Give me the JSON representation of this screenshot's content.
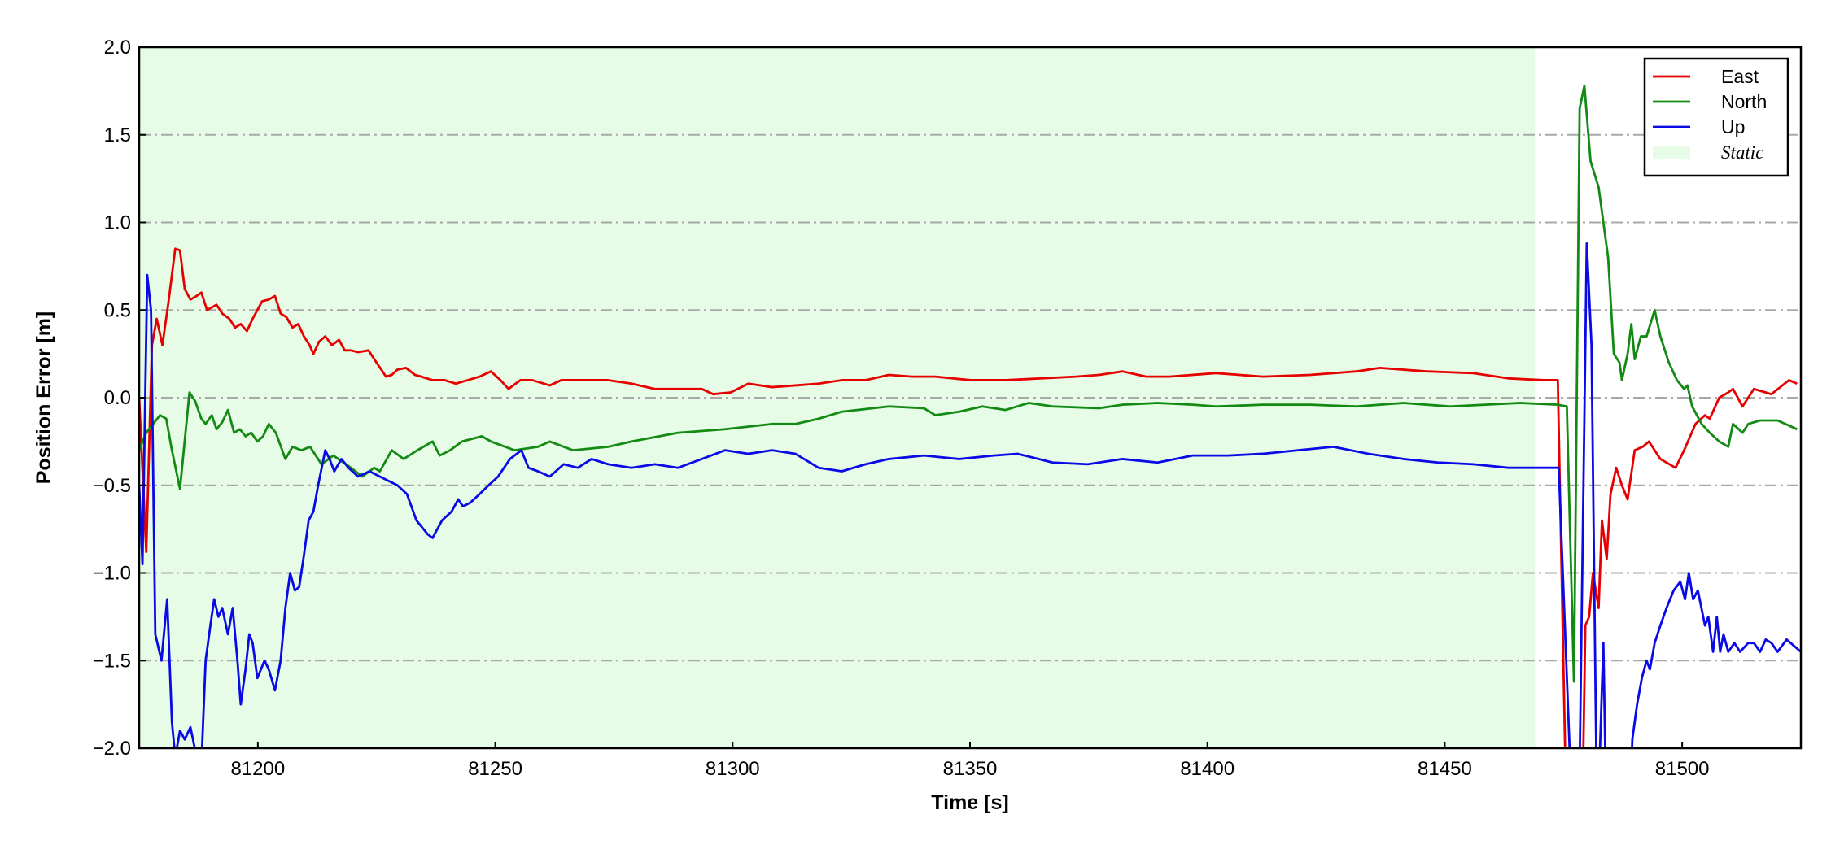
{
  "chart_data": {
    "type": "line",
    "xlabel": "Time [s]",
    "ylabel": "Position Error [m]",
    "xlim": [
      81175,
      81525
    ],
    "ylim": [
      -2,
      2
    ],
    "xticks": [
      81200,
      81250,
      81300,
      81350,
      81400,
      81450,
      81500
    ],
    "yticks": [
      {
        "value": -2,
        "label": "−2.0"
      },
      {
        "value": -1.5,
        "label": "−1.5"
      },
      {
        "value": -1,
        "label": "−1.0"
      },
      {
        "value": -0.5,
        "label": "−0.5"
      },
      {
        "value": 0,
        "label": "0.0"
      },
      {
        "value": 0.5,
        "label": "0.5"
      },
      {
        "value": 1,
        "label": "1.0"
      },
      {
        "value": 1.5,
        "label": "1.5"
      },
      {
        "value": 2,
        "label": "2.0"
      }
    ],
    "grid": true,
    "legend": "upper right",
    "static": {
      "label": "Static",
      "color": "#e6fce6",
      "xrange": [
        81175,
        81469
      ]
    },
    "series": [
      {
        "name": "East",
        "color": "#e60000",
        "x": [
          81175,
          81176.5,
          81177.7,
          81178.7,
          81179.9,
          81181.2,
          81182.6,
          81183.6,
          81184.6,
          81185.8,
          81187.1,
          81188.1,
          81189.3,
          81191.3,
          81192.5,
          81194,
          81195.2,
          81196.4,
          81197.7,
          81198.9,
          81200.9,
          81202.3,
          81203.6,
          81204.8,
          81206,
          81207.3,
          81208.5,
          81209.7,
          81210.9,
          81211.7,
          81212.9,
          81214.2,
          81215.6,
          81217.1,
          81218.3,
          81219.6,
          81221.1,
          81223.3,
          81225,
          81227,
          81228.2,
          81229.4,
          81231.2,
          81233.1,
          81234.4,
          81236.8,
          81239.3,
          81241.7,
          81244.2,
          81246.7,
          81249.1,
          81251.1,
          81252.8,
          81255.3,
          81257.8,
          81261.5,
          81263.9,
          81268.8,
          81273.8,
          81278.7,
          81283.6,
          81288.5,
          81293.5,
          81295.9,
          81299.6,
          81303.3,
          81308.3,
          81313.2,
          81318.1,
          81323,
          81328,
          81332.9,
          81337.8,
          81342.7,
          81350.1,
          81357.5,
          81364.9,
          81372.3,
          81377.2,
          81382.1,
          81387.1,
          81392,
          81401.8,
          81411.7,
          81421.6,
          81431.4,
          81436.3,
          81446.2,
          81456,
          81463.4,
          81470.8,
          81473.8,
          81475.7,
          81478.9,
          81479.6,
          81480.4,
          81481.2,
          81482.4,
          81483.1,
          81484.1,
          81484.9,
          81486.1,
          81487.3,
          81488.5,
          81490,
          81491.7,
          81493,
          81495.4,
          81498.6,
          81500.4,
          81502.8,
          81504.8,
          81505.8,
          81507.8,
          81509.7,
          81510.7,
          81512.7,
          81513.9,
          81515.1,
          81518.8,
          81522.5,
          81524.2
        ],
        "values": [
          0.0,
          -0.88,
          0.3,
          0.45,
          0.3,
          0.55,
          0.85,
          0.84,
          0.62,
          0.56,
          0.58,
          0.6,
          0.5,
          0.53,
          0.48,
          0.45,
          0.4,
          0.42,
          0.38,
          0.45,
          0.55,
          0.56,
          0.58,
          0.48,
          0.46,
          0.4,
          0.42,
          0.35,
          0.3,
          0.25,
          0.32,
          0.35,
          0.3,
          0.33,
          0.27,
          0.27,
          0.26,
          0.27,
          0.2,
          0.12,
          0.13,
          0.16,
          0.17,
          0.13,
          0.12,
          0.1,
          0.1,
          0.08,
          0.1,
          0.12,
          0.15,
          0.1,
          0.05,
          0.1,
          0.1,
          0.07,
          0.1,
          0.1,
          0.1,
          0.08,
          0.05,
          0.05,
          0.05,
          0.02,
          0.03,
          0.08,
          0.06,
          0.07,
          0.08,
          0.1,
          0.1,
          0.13,
          0.12,
          0.12,
          0.1,
          0.1,
          0.11,
          0.12,
          0.13,
          0.15,
          0.12,
          0.12,
          0.14,
          0.12,
          0.13,
          0.15,
          0.17,
          0.15,
          0.14,
          0.11,
          0.1,
          0.1,
          -2.5,
          -2.5,
          -1.3,
          -1.25,
          -1.0,
          -1.2,
          -0.7,
          -0.92,
          -0.55,
          -0.4,
          -0.5,
          -0.58,
          -0.3,
          -0.28,
          -0.25,
          -0.35,
          -0.4,
          -0.3,
          -0.15,
          -0.1,
          -0.12,
          0.0,
          0.03,
          0.05,
          -0.05,
          0.0,
          0.05,
          0.02,
          0.1,
          0.08
        ]
      },
      {
        "name": "North",
        "color": "#138a13",
        "x": [
          81175,
          81176.5,
          81179.4,
          81180.7,
          81181.9,
          81183.6,
          81185.6,
          81186.8,
          81188.1,
          81189,
          81190.3,
          81191.3,
          81192.5,
          81193.7,
          81195,
          81196.2,
          81197.4,
          81198.6,
          81199.9,
          81201.1,
          81202.3,
          81203.8,
          81205.8,
          81207.3,
          81209.2,
          81211,
          81213.4,
          81215.9,
          81219.6,
          81222,
          81224.5,
          81225.7,
          81228.2,
          81230.7,
          81233.6,
          81236.8,
          81238.3,
          81240.5,
          81243,
          81247.2,
          81249.1,
          81254.1,
          81259,
          81261.5,
          81266.4,
          81273.8,
          81278.7,
          81288.5,
          81298.4,
          81308.3,
          81313.2,
          81318.1,
          81323,
          81332.9,
          81340.3,
          81342.7,
          81347.7,
          81352.6,
          81357.5,
          81362.4,
          81367.4,
          81377.2,
          81382.1,
          81389.5,
          81396.9,
          81401.8,
          81411.7,
          81421.6,
          81431.4,
          81441.3,
          81451.1,
          81465.9,
          81473.8,
          81475.7,
          81477.2,
          81478.4,
          81479.4,
          81480.7,
          81482.4,
          81484.4,
          81485.6,
          81486.8,
          81487.3,
          81488.5,
          81489.3,
          81490,
          81491.3,
          81492.5,
          81494.2,
          81495.4,
          81497.2,
          81498.9,
          81500.4,
          81501.1,
          81502.1,
          81504.1,
          81505.8,
          81507.8,
          81509.7,
          81510.7,
          81512.7,
          81513.9,
          81516.4,
          81520.1,
          81524.2
        ],
        "values": [
          -0.3,
          -0.2,
          -0.1,
          -0.12,
          -0.3,
          -0.52,
          0.03,
          -0.02,
          -0.12,
          -0.15,
          -0.1,
          -0.18,
          -0.14,
          -0.07,
          -0.2,
          -0.18,
          -0.22,
          -0.2,
          -0.25,
          -0.22,
          -0.15,
          -0.2,
          -0.35,
          -0.28,
          -0.3,
          -0.28,
          -0.38,
          -0.33,
          -0.4,
          -0.45,
          -0.4,
          -0.42,
          -0.3,
          -0.35,
          -0.3,
          -0.25,
          -0.33,
          -0.3,
          -0.25,
          -0.22,
          -0.25,
          -0.3,
          -0.28,
          -0.25,
          -0.3,
          -0.28,
          -0.25,
          -0.2,
          -0.18,
          -0.15,
          -0.15,
          -0.12,
          -0.08,
          -0.05,
          -0.06,
          -0.1,
          -0.08,
          -0.05,
          -0.07,
          -0.03,
          -0.05,
          -0.06,
          -0.04,
          -0.03,
          -0.04,
          -0.05,
          -0.04,
          -0.04,
          -0.05,
          -0.03,
          -0.05,
          -0.03,
          -0.04,
          -0.05,
          -1.62,
          1.65,
          1.78,
          1.35,
          1.2,
          0.8,
          0.25,
          0.2,
          0.1,
          0.25,
          0.42,
          0.22,
          0.35,
          0.35,
          0.5,
          0.35,
          0.2,
          0.1,
          0.05,
          0.07,
          -0.05,
          -0.15,
          -0.2,
          -0.25,
          -0.28,
          -0.15,
          -0.2,
          -0.15,
          -0.13,
          -0.13,
          -0.18
        ]
      },
      {
        "name": "Up",
        "color": "#0a0ae6",
        "x": [
          81175,
          81175.7,
          81176.7,
          81177.5,
          81178.4,
          81179.7,
          81180.9,
          81181.9,
          81182.6,
          81183.6,
          81184.6,
          81185.8,
          81187.1,
          81188.1,
          81189,
          81190,
          81190.8,
          81191.7,
          81192.5,
          81193.7,
          81194.7,
          81195.7,
          81196.4,
          81197.4,
          81198.2,
          81198.9,
          81199.9,
          81201.4,
          81202.3,
          81203.6,
          81204.8,
          81205.8,
          81206.8,
          81207.8,
          81208.7,
          81209.7,
          81210.7,
          81211.7,
          81212.7,
          81214.2,
          81215.1,
          81216.1,
          81217.6,
          81219.1,
          81221.1,
          81223.5,
          81225.7,
          81229.4,
          81231.4,
          81233.4,
          81235.8,
          81236.8,
          81238.8,
          81240.8,
          81242.2,
          81243.2,
          81244.7,
          81246.7,
          81248.6,
          81250.6,
          81253.1,
          81255.5,
          81257,
          81259,
          81261.5,
          81264.4,
          81267.4,
          81270.3,
          81273.8,
          81278.7,
          81283.6,
          81288.5,
          81293.5,
          81298.4,
          81303.3,
          81308.3,
          81313.2,
          81318.1,
          81323,
          81328,
          81332.9,
          81340.3,
          81347.7,
          81355,
          81360,
          81367.4,
          81374.8,
          81382.1,
          81389.5,
          81396.9,
          81404.3,
          81411.7,
          81419.1,
          81426.5,
          81433.9,
          81441.3,
          81448.6,
          81456,
          81463.4,
          81470.8,
          81474,
          81477,
          81478.2,
          81479.9,
          81480.9,
          81482.1,
          81483.4,
          81484.1,
          81488.8,
          81489.5,
          81490.5,
          81491.5,
          81492.5,
          81493.2,
          81494.2,
          81495.4,
          81496.7,
          81498.2,
          81499.6,
          81500.6,
          81501.4,
          81502.3,
          81503.3,
          81504.8,
          81505.5,
          81506.5,
          81507.3,
          81508,
          81508.7,
          81509.7,
          81511,
          81512.2,
          81513.9,
          81515.1,
          81516.4,
          81517.6,
          81518.8,
          81520.1,
          81522,
          81525
        ],
        "values": [
          -0.5,
          -0.95,
          0.7,
          0.5,
          -1.35,
          -1.5,
          -1.15,
          -1.85,
          -2.05,
          -1.9,
          -1.95,
          -1.88,
          -2.05,
          -2.1,
          -1.5,
          -1.3,
          -1.15,
          -1.25,
          -1.2,
          -1.35,
          -1.2,
          -1.5,
          -1.75,
          -1.55,
          -1.35,
          -1.4,
          -1.6,
          -1.5,
          -1.55,
          -1.67,
          -1.5,
          -1.2,
          -1.0,
          -1.1,
          -1.08,
          -0.9,
          -0.7,
          -0.65,
          -0.5,
          -0.3,
          -0.35,
          -0.42,
          -0.35,
          -0.4,
          -0.45,
          -0.42,
          -0.45,
          -0.5,
          -0.55,
          -0.7,
          -0.78,
          -0.8,
          -0.7,
          -0.65,
          -0.58,
          -0.62,
          -0.6,
          -0.55,
          -0.5,
          -0.45,
          -0.35,
          -0.3,
          -0.4,
          -0.42,
          -0.45,
          -0.38,
          -0.4,
          -0.35,
          -0.38,
          -0.4,
          -0.38,
          -0.4,
          -0.35,
          -0.3,
          -0.32,
          -0.3,
          -0.32,
          -0.4,
          -0.42,
          -0.38,
          -0.35,
          -0.33,
          -0.35,
          -0.33,
          -0.32,
          -0.37,
          -0.38,
          -0.35,
          -0.37,
          -0.33,
          -0.33,
          -0.32,
          -0.3,
          -0.28,
          -0.32,
          -0.35,
          -0.37,
          -0.38,
          -0.4,
          -0.4,
          -0.4,
          -2.5,
          -2.5,
          0.88,
          0.3,
          -2.5,
          -1.4,
          -2.5,
          -2.5,
          -1.95,
          -1.75,
          -1.6,
          -1.5,
          -1.55,
          -1.4,
          -1.3,
          -1.2,
          -1.1,
          -1.05,
          -1.15,
          -1.0,
          -1.15,
          -1.1,
          -1.3,
          -1.25,
          -1.45,
          -1.25,
          -1.45,
          -1.35,
          -1.45,
          -1.4,
          -1.45,
          -1.4,
          -1.4,
          -1.45,
          -1.38,
          -1.4,
          -1.45,
          -1.38,
          -1.45
        ]
      }
    ]
  }
}
